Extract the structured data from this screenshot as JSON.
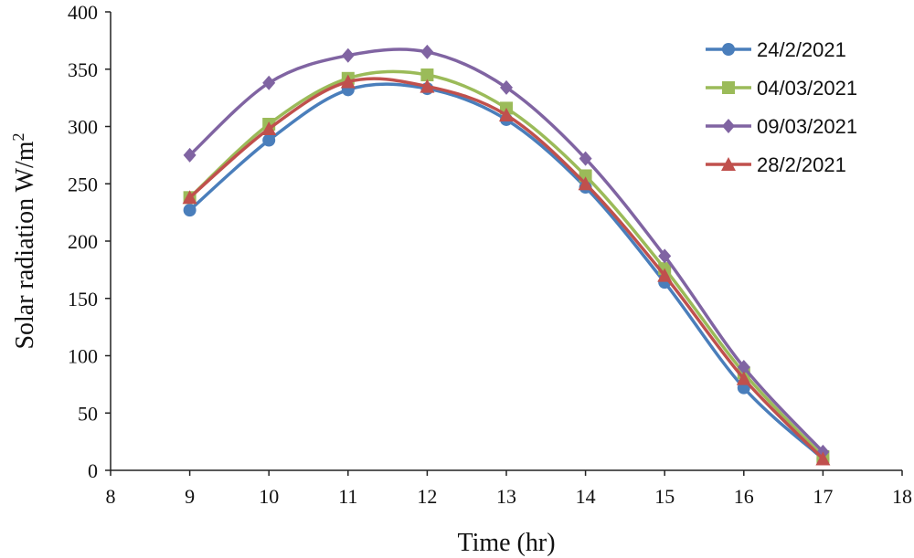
{
  "chart_data": {
    "type": "line",
    "title": "",
    "xlabel": "Time (hr)",
    "ylabel": "Solar radiation W/m",
    "ylabel_superscript": "2",
    "xlim": [
      8,
      18
    ],
    "ylim": [
      0,
      400
    ],
    "xticks": [
      8,
      9,
      10,
      11,
      12,
      13,
      14,
      15,
      16,
      17,
      18
    ],
    "yticks": [
      0,
      50,
      100,
      150,
      200,
      250,
      300,
      350,
      400
    ],
    "grid": false,
    "legend_position": "top-right",
    "x": [
      9,
      10,
      11,
      12,
      13,
      14,
      15,
      16,
      17
    ],
    "series": [
      {
        "name": "24/2/2021",
        "color": "#4a7ebb",
        "marker": "circle",
        "values": [
          227,
          288,
          332,
          333,
          306,
          247,
          164,
          72,
          10
        ]
      },
      {
        "name": "04/03/2021",
        "color": "#9bbb59",
        "marker": "square",
        "values": [
          238,
          302,
          342,
          345,
          316,
          257,
          176,
          85,
          12
        ]
      },
      {
        "name": "09/03/2021",
        "color": "#8064a2",
        "marker": "diamond",
        "values": [
          275,
          338,
          362,
          365,
          334,
          272,
          187,
          90,
          16
        ]
      },
      {
        "name": "28/2/2021",
        "color": "#c0504d",
        "marker": "triangle",
        "values": [
          238,
          298,
          339,
          335,
          310,
          250,
          170,
          80,
          10
        ]
      }
    ]
  }
}
